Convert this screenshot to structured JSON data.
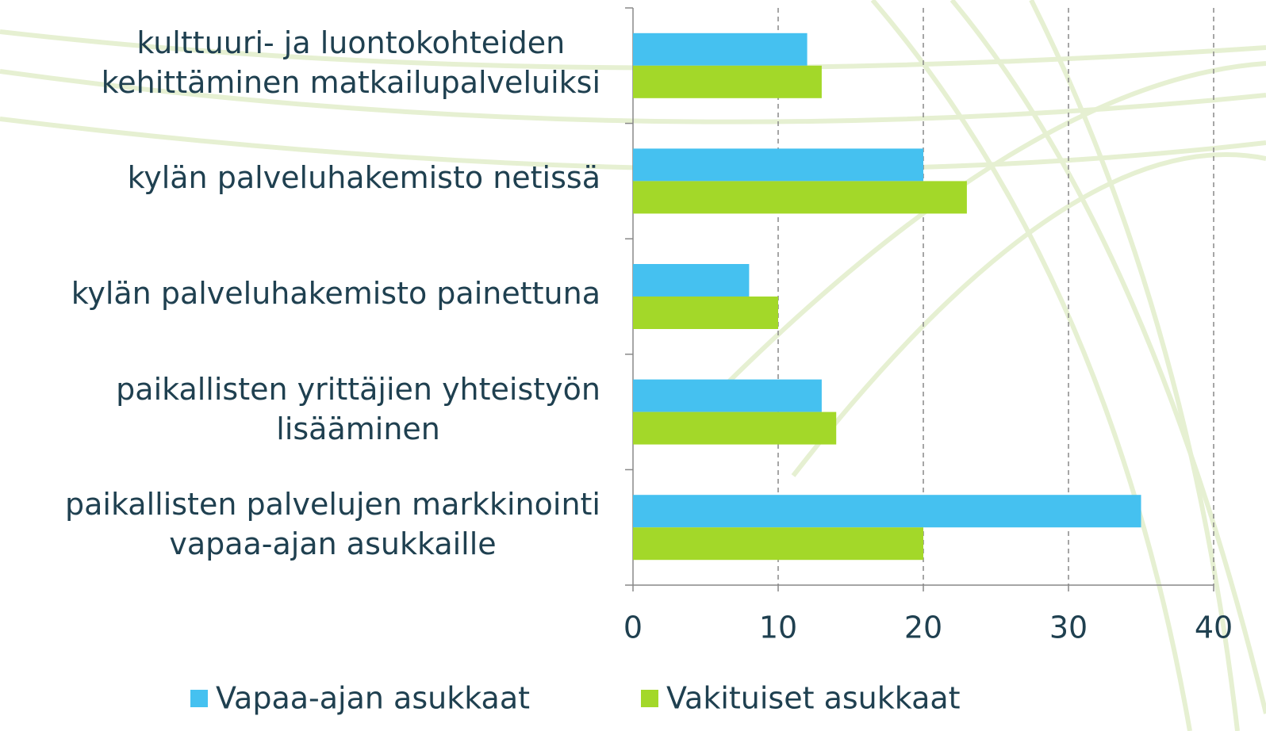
{
  "chart_data": {
    "type": "hbar",
    "categories": [
      "kulttuuri- ja luontokohteiden\nkehittäminen matkailupalveluiksi",
      "kylän palveluhakemisto netissä",
      "kylän palveluhakemisto painettuna",
      "paikallisten yrittäjien yhteistyön\nlisääminen",
      "paikallisten palvelujen markkinointi\nvapaa-ajan asukkaille"
    ],
    "series": [
      {
        "name": "Vapaa-ajan asukkaat",
        "color": "#45c1f0",
        "values": [
          12,
          20,
          8,
          13,
          35
        ]
      },
      {
        "name": "Vakituiset asukkaat",
        "color": "#a3d829",
        "values": [
          13,
          23,
          10,
          14,
          20
        ]
      }
    ],
    "xlim": [
      0,
      40
    ],
    "xticks": [
      0,
      10,
      20,
      30,
      40
    ],
    "grid": true,
    "legend": "bottom"
  }
}
